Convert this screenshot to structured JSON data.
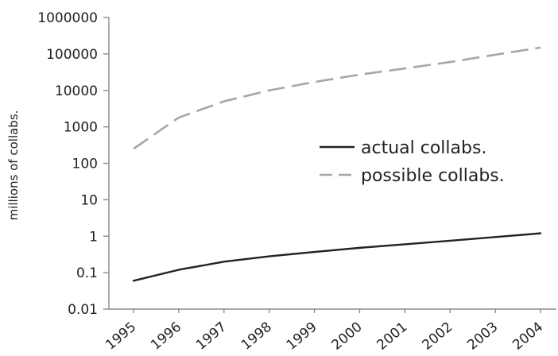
{
  "chart_data": {
    "type": "line",
    "title": "",
    "xlabel": "",
    "ylabel": "millions of collabs.",
    "yscale": "log",
    "ylim": [
      0.01,
      1000000
    ],
    "yticks": [
      0.01,
      0.1,
      1,
      10,
      100,
      1000,
      10000,
      100000,
      1000000
    ],
    "ytick_labels": [
      "0.01",
      "0.1",
      "1",
      "10",
      "100",
      "1000",
      "10000",
      "100000",
      "1000000"
    ],
    "categories": [
      "1995",
      "1996",
      "1997",
      "1998",
      "1999",
      "2000",
      "2001",
      "2002",
      "2003",
      "2004"
    ],
    "grid": false,
    "legend_position": "center-right",
    "series": [
      {
        "name": "actual collabs.",
        "style": "solid",
        "color": "#222222",
        "values": [
          0.06,
          0.12,
          0.2,
          0.28,
          0.37,
          0.48,
          0.6,
          0.75,
          0.95,
          1.2
        ]
      },
      {
        "name": "possible collabs.",
        "style": "dashed",
        "color": "#a6a6a6",
        "values": [
          250,
          1800,
          5000,
          10000,
          17000,
          27000,
          40000,
          60000,
          95000,
          150000
        ]
      }
    ]
  }
}
